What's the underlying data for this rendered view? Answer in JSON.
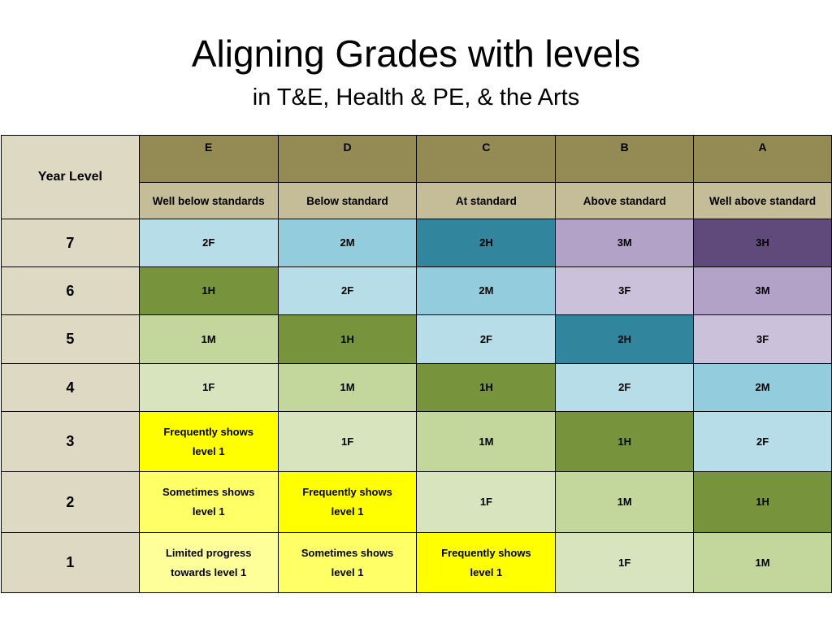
{
  "title": "Aligning Grades with levels",
  "subtitle": "in T&E, Health & PE, & the Arts",
  "table": {
    "corner": "Year Level",
    "letters": [
      "E",
      "D",
      "C",
      "B",
      "A"
    ],
    "descriptors": [
      "Well below standards",
      "Below  standard",
      "At standard",
      "Above standard",
      "Well above standard"
    ],
    "rows": [
      {
        "year": "7",
        "cells": [
          "2F",
          "2M",
          "2H",
          "3M",
          "3H"
        ]
      },
      {
        "year": "6",
        "cells": [
          "1H",
          "2F",
          "2M",
          "3F",
          "3M"
        ]
      },
      {
        "year": "5",
        "cells": [
          "1M",
          "1H",
          "2F",
          "2H",
          "3F"
        ]
      },
      {
        "year": "4",
        "cells": [
          "1F",
          "1M",
          "1H",
          "2F",
          "2M"
        ]
      },
      {
        "year": "3",
        "cells": [
          "Frequently shows level 1",
          "1F",
          "1M",
          "1H",
          "2F"
        ]
      },
      {
        "year": "2",
        "cells": [
          "Sometimes shows level 1",
          "Frequently shows level 1",
          "1F",
          "1M",
          "1H"
        ]
      },
      {
        "year": "1",
        "cells": [
          "Limited progress towards level 1",
          "Sometimes shows level 1",
          "Frequently shows level 1",
          "1F",
          "1M"
        ]
      }
    ]
  },
  "colors": {
    "1F": "#d7e4bd",
    "1M": "#c3d69b",
    "1H": "#77933c",
    "2F": "#b7dee8",
    "2M": "#93cddd",
    "2H": "#31859c",
    "3F": "#ccc1da",
    "3M": "#b3a2c7",
    "3H": "#604a7b",
    "Frequently shows level 1": "#ffff00",
    "Sometimes shows level 1": "#ffff66",
    "Limited progress towards level 1": "#ffff99"
  }
}
